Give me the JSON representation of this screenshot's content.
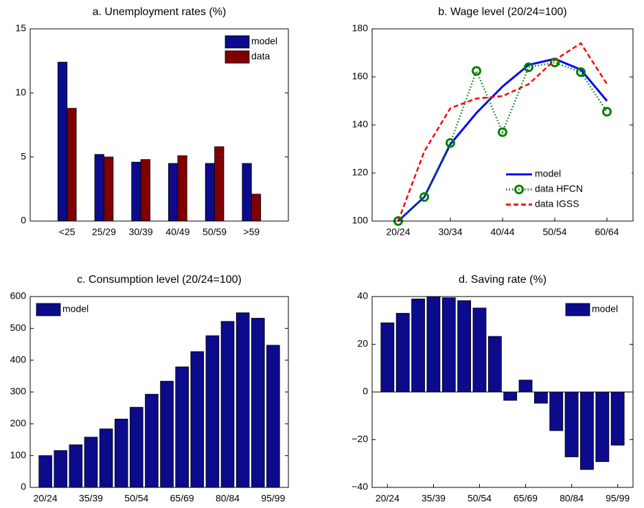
{
  "chart_data": [
    {
      "type": "bar",
      "title": "a. Unemployment rates (%)",
      "categories": [
        "<25",
        "25/29",
        "30/39",
        "40/49",
        "50/59",
        ">59"
      ],
      "series": [
        {
          "name": "model",
          "color": "#0b0b8c",
          "values": [
            12.4,
            5.2,
            4.6,
            4.5,
            4.5,
            4.5
          ]
        },
        {
          "name": "data",
          "color": "#800000",
          "values": [
            8.8,
            5.0,
            4.8,
            5.1,
            5.8,
            2.1
          ]
        }
      ],
      "ylim": [
        0,
        15
      ],
      "yticks": [
        0,
        5,
        10,
        15
      ],
      "legend": "upper right"
    },
    {
      "type": "line",
      "title": "b. Wage level (20/24=100)",
      "categories": [
        "20/24",
        null,
        "30/34",
        null,
        "40/44",
        null,
        "50/54",
        null,
        "60/64"
      ],
      "series": [
        {
          "name": "model",
          "color": "#0000ff",
          "linestyle": "solid",
          "values": [
            100,
            110,
            132,
            145,
            156,
            165,
            167.5,
            163,
            150
          ]
        },
        {
          "name": "data HFCN",
          "color": "#008000",
          "linestyle": "dotted",
          "marker": "o",
          "values": [
            100,
            110,
            132.5,
            162.5,
            137,
            164,
            166,
            162,
            145.5
          ]
        },
        {
          "name": "data IGSS",
          "color": "#ff0000",
          "linestyle": "dashed",
          "values": [
            100,
            129,
            147,
            151,
            152,
            157,
            167,
            174,
            157
          ]
        }
      ],
      "ylim": [
        100,
        180
      ],
      "yticks": [
        100,
        120,
        140,
        160,
        180
      ],
      "legend": "lower right"
    },
    {
      "type": "bar",
      "title": "c. Consumption level (20/24=100)",
      "categories": [
        "20/24",
        null,
        null,
        "35/39",
        null,
        null,
        "50/54",
        null,
        null,
        "65/69",
        null,
        null,
        "80/84",
        null,
        null,
        "95/99"
      ],
      "series": [
        {
          "name": "model",
          "color": "#0b0b8c",
          "values": [
            100,
            116,
            134,
            158,
            184,
            215,
            252,
            293,
            334,
            379,
            427,
            477,
            522,
            549,
            532,
            447
          ]
        }
      ],
      "ylim": [
        0,
        600
      ],
      "yticks": [
        0,
        100,
        200,
        300,
        400,
        500,
        600
      ],
      "legend": "upper left"
    },
    {
      "type": "bar",
      "title": "d. Saving rate (%)",
      "categories": [
        "20/24",
        null,
        null,
        "35/39",
        null,
        null,
        "50/54",
        null,
        null,
        "65/69",
        null,
        null,
        "80/84",
        null,
        null,
        "95/99"
      ],
      "series": [
        {
          "name": "model",
          "color": "#0b0b8c",
          "values": [
            29,
            33,
            39,
            40,
            39.5,
            38.3,
            35.2,
            23.3,
            -3.5,
            5,
            -4.7,
            -16.2,
            -27.2,
            -32.5,
            -29.2,
            -22.3
          ]
        }
      ],
      "ylim": [
        -40,
        40
      ],
      "yticks": [
        {
          "value": -40,
          "label": "−40"
        },
        {
          "value": -20,
          "label": "−20"
        },
        0,
        20,
        40
      ],
      "legend": "upper right"
    }
  ]
}
